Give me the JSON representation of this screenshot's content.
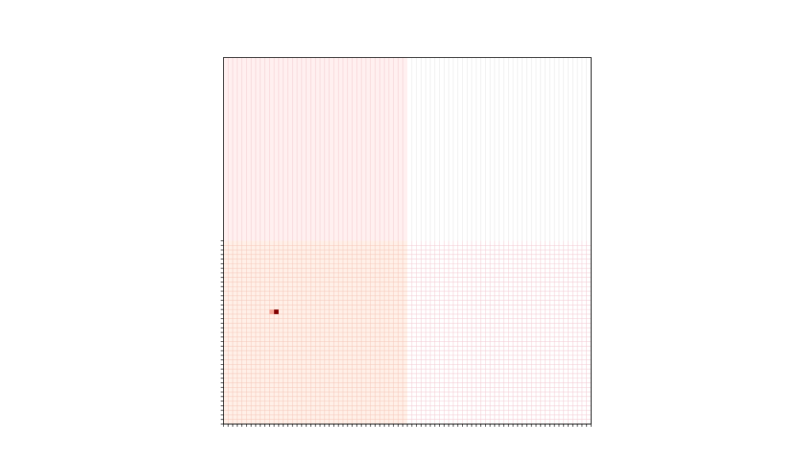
{
  "chart_data": {
    "type": "heatmap",
    "title": "",
    "xlabel": "",
    "ylabel": "",
    "grid": true,
    "colormap": "Reds",
    "n_cols": 80,
    "n_rows": 80,
    "quadrants": [
      {
        "position": "top-left",
        "value": 0.04,
        "color": "#fff0f0"
      },
      {
        "position": "top-right",
        "value": 0.0,
        "color": "#ffffff"
      },
      {
        "position": "bottom-left",
        "value": 0.06,
        "color": "#fff0e8"
      },
      {
        "position": "bottom-right",
        "value": 0.0,
        "color": "#ffffff"
      }
    ],
    "grid_colors": {
      "top-left": "#f2c8cc",
      "top-right": "#e4e4e4",
      "bottom-left": "#f5c6b8",
      "bottom-right": "#f2c8d0"
    },
    "hot_cells": [
      {
        "col": 10,
        "row": 55,
        "value": 0.4,
        "color": "#f7a99a"
      },
      {
        "col": 11,
        "row": 55,
        "value": 1.0,
        "color": "#800000"
      }
    ],
    "x_ticks_region": "full",
    "y_ticks_region": "bottom-half"
  }
}
